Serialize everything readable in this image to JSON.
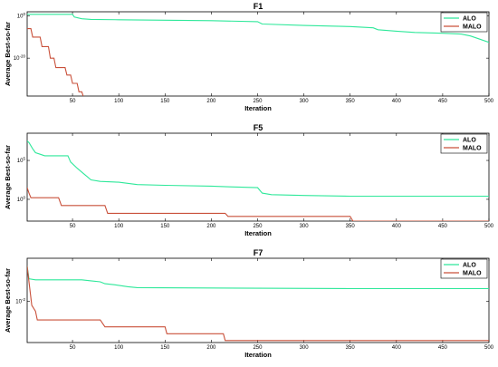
{
  "colors": {
    "alo": "#2ee89a",
    "malo": "#c9503a"
  },
  "chart_data": [
    {
      "type": "line",
      "title": "F1",
      "xlabel": "Iteration",
      "ylabel": "Average Best-so-far",
      "xlim": [
        1,
        500
      ],
      "xticks": [
        50,
        100,
        150,
        200,
        250,
        300,
        350,
        400,
        450,
        500
      ],
      "yscale": "log",
      "ylim_log10": [
        -38,
        2
      ],
      "yticks": [
        {
          "log10": 0,
          "label": "10",
          "exp": "0"
        },
        {
          "log10": -20,
          "label": "10",
          "exp": "-20"
        }
      ],
      "legend": "top-right",
      "series": [
        {
          "name": "ALO",
          "color": "alo",
          "points": [
            [
              1,
              0.8
            ],
            [
              5,
              0.8
            ],
            [
              50,
              0.8
            ],
            [
              52,
              -0.5
            ],
            [
              60,
              -1.3
            ],
            [
              70,
              -1.6
            ],
            [
              100,
              -1.8
            ],
            [
              150,
              -2.0
            ],
            [
              200,
              -2.2
            ],
            [
              250,
              -2.7
            ],
            [
              255,
              -3.8
            ],
            [
              300,
              -4.5
            ],
            [
              350,
              -5.0
            ],
            [
              375,
              -5.6
            ],
            [
              380,
              -6.5
            ],
            [
              400,
              -7.2
            ],
            [
              420,
              -7.8
            ],
            [
              450,
              -8.2
            ],
            [
              470,
              -8.6
            ],
            [
              480,
              -9.5
            ],
            [
              490,
              -11.0
            ],
            [
              500,
              -12.5
            ]
          ]
        },
        {
          "name": "MALO",
          "color": "malo",
          "points": [
            [
              1,
              -6.0
            ],
            [
              5,
              -6.0
            ],
            [
              7,
              -10.0
            ],
            [
              15,
              -10.0
            ],
            [
              17,
              -14.5
            ],
            [
              24,
              -14.5
            ],
            [
              26,
              -20.0
            ],
            [
              30,
              -20.0
            ],
            [
              32,
              -24.5
            ],
            [
              42,
              -24.5
            ],
            [
              44,
              -28.0
            ],
            [
              48,
              -28.0
            ],
            [
              50,
              -32.0
            ],
            [
              55,
              -32.0
            ],
            [
              57,
              -36.0
            ],
            [
              60,
              -36.0
            ],
            [
              62,
              -38.5
            ]
          ]
        }
      ]
    },
    {
      "type": "line",
      "title": "F5",
      "xlabel": "Iteration",
      "ylabel": "Average Best-so-far",
      "xlim": [
        1,
        500
      ],
      "xticks": [
        50,
        100,
        150,
        200,
        250,
        300,
        350,
        400,
        450,
        500
      ],
      "yscale": "log",
      "ylim_log10": [
        -2.8,
        8.5
      ],
      "yticks": [
        {
          "log10": 5,
          "label": "10",
          "exp": "5"
        },
        {
          "log10": 0,
          "label": "10",
          "exp": "0"
        }
      ],
      "legend": "top-right",
      "series": [
        {
          "name": "ALO",
          "color": "alo",
          "points": [
            [
              1,
              7.5
            ],
            [
              3,
              7.3
            ],
            [
              7,
              6.5
            ],
            [
              10,
              6.0
            ],
            [
              15,
              5.8
            ],
            [
              20,
              5.6
            ],
            [
              45,
              5.6
            ],
            [
              48,
              4.8
            ],
            [
              55,
              4.0
            ],
            [
              60,
              3.5
            ],
            [
              65,
              3.0
            ],
            [
              70,
              2.5
            ],
            [
              80,
              2.3
            ],
            [
              100,
              2.2
            ],
            [
              120,
              1.9
            ],
            [
              150,
              1.8
            ],
            [
              200,
              1.7
            ],
            [
              220,
              1.6
            ],
            [
              250,
              1.5
            ],
            [
              255,
              0.8
            ],
            [
              265,
              0.6
            ],
            [
              300,
              0.5
            ],
            [
              350,
              0.4
            ],
            [
              500,
              0.4
            ]
          ]
        },
        {
          "name": "MALO",
          "color": "malo",
          "points": [
            [
              1,
              1.5
            ],
            [
              3,
              0.8
            ],
            [
              5,
              0.2
            ],
            [
              35,
              0.2
            ],
            [
              38,
              -0.8
            ],
            [
              85,
              -0.8
            ],
            [
              88,
              -1.8
            ],
            [
              215,
              -1.8
            ],
            [
              218,
              -2.2
            ],
            [
              350,
              -2.2
            ],
            [
              353,
              -2.8
            ],
            [
              500,
              -2.8
            ]
          ]
        }
      ]
    },
    {
      "type": "line",
      "title": "F7",
      "xlabel": "Iteration",
      "ylabel": "Average Best-so-far",
      "xlim": [
        1,
        500
      ],
      "xticks": [
        50,
        100,
        150,
        200,
        250,
        300,
        350,
        400,
        450,
        500
      ],
      "yscale": "log",
      "ylim_log10": [
        -4.1,
        0.2
      ],
      "yticks": [
        {
          "log10": -2,
          "label": "10",
          "exp": "-2"
        }
      ],
      "legend": "top-right",
      "series": [
        {
          "name": "ALO",
          "color": "alo",
          "points": [
            [
              1,
              -0.2
            ],
            [
              3,
              -0.85
            ],
            [
              10,
              -0.9
            ],
            [
              60,
              -0.9
            ],
            [
              70,
              -0.95
            ],
            [
              80,
              -1.0
            ],
            [
              85,
              -1.1
            ],
            [
              95,
              -1.15
            ],
            [
              110,
              -1.25
            ],
            [
              120,
              -1.3
            ],
            [
              250,
              -1.33
            ],
            [
              350,
              -1.35
            ],
            [
              500,
              -1.35
            ]
          ]
        },
        {
          "name": "MALO",
          "color": "malo",
          "points": [
            [
              1,
              -0.2
            ],
            [
              3,
              -1.0
            ],
            [
              6,
              -2.2
            ],
            [
              10,
              -2.5
            ],
            [
              12,
              -2.95
            ],
            [
              80,
              -2.95
            ],
            [
              85,
              -3.3
            ],
            [
              150,
              -3.3
            ],
            [
              152,
              -3.65
            ],
            [
              213,
              -3.65
            ],
            [
              215,
              -4.0
            ],
            [
              500,
              -4.0
            ]
          ]
        }
      ]
    }
  ]
}
